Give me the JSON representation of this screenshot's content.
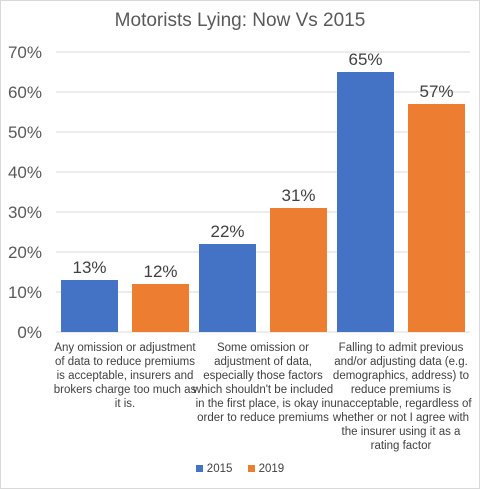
{
  "chart_data": {
    "type": "bar",
    "title": "Motorists Lying: Now Vs 2015",
    "categories": [
      "Any omission or adjustment of data to reduce premiums is acceptable, insurers and brokers charge too much as it is.",
      "Some omission or adjustment of data, especially those factors which shouldn't be included in the first place, is okay in order to reduce premiums",
      "Falling to admit previous and/or adjusting data (e.g. demographics, address) to reduce premiums is unacceptable, regardless of whether or not I agree with the insurer using it as a rating factor"
    ],
    "category_display_lines": [
      "Any omission or adjustment\nof data to reduce premiums\nis acceptable, insurers and\nbrokers charge too much as\nit is.",
      "Some omission or\nadjustment of data,\nespecially those factors\nwhich shouldn't be included\nin the first place, is okay in\norder to reduce premiums",
      "Falling to admit previous\nand/or adjusting data (e.g.\ndemographics, address) to\nreduce premiums is\nunacceptable, regardless of\nwhether or not I agree with\nthe insurer using it as a\nrating factor"
    ],
    "series": [
      {
        "name": "2015",
        "color": "#4472c4",
        "values": [
          13,
          22,
          65
        ],
        "labels": [
          "13%",
          "22%",
          "65%"
        ]
      },
      {
        "name": "2019",
        "color": "#ed7d31",
        "values": [
          12,
          31,
          57
        ],
        "labels": [
          "12%",
          "31%",
          "57%"
        ]
      }
    ],
    "ylim": [
      0,
      70
    ],
    "yticks": [
      "0%",
      "10%",
      "20%",
      "30%",
      "40%",
      "50%",
      "60%",
      "70%"
    ],
    "grid": true,
    "legend_position": "bottom"
  }
}
